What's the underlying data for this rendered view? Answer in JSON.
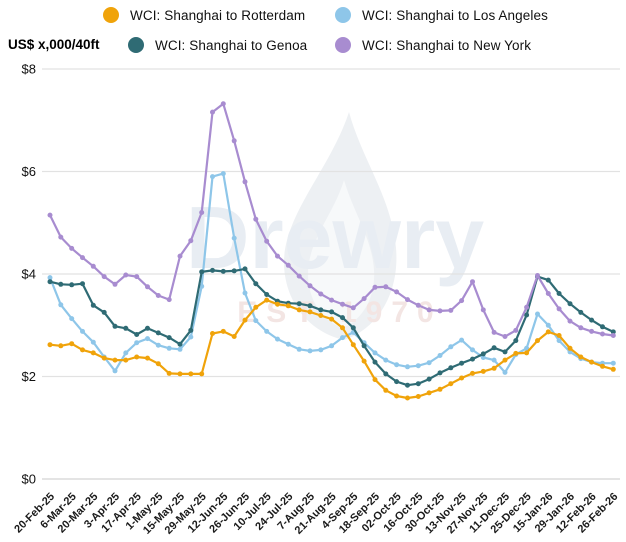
{
  "header": {
    "unit_label": "US$ x,000/40ft"
  },
  "watermark": {
    "text": "Drewry",
    "subtext": "EST 1970"
  },
  "chart_data": {
    "type": "line",
    "title": "",
    "ylabel": "US$ x,000/40ft",
    "xlabel": "",
    "ylim": [
      0,
      8
    ],
    "ytick_values": [
      0,
      2,
      4,
      6,
      8
    ],
    "ytick_labels": [
      "$0",
      "$2",
      "$4",
      "$6",
      "$8"
    ],
    "grid": "horizontal",
    "legend_position": "top",
    "marker": "circle",
    "x_label_rotation": -45,
    "label_every": 2,
    "x_tick_labels": [
      "20-Feb-25",
      "6-Mar-25",
      "20-Mar-25",
      "3-Apr-25",
      "17-Apr-25",
      "1-May-25",
      "15-May-25",
      "29-May-25",
      "12-Jun-25",
      "26-Jun-25",
      "10-Jul-25",
      "24-Jul-25",
      "7-Aug-25",
      "21-Aug-25",
      "4-Sep-25",
      "18-Sep-25",
      "02-Oct-25",
      "16-Oct-25",
      "30-Oct-25",
      "13-Nov-25",
      "27-Nov-25",
      "11-Dec-25",
      "25-Dec-25",
      "15-Jan-26",
      "29-Jan-26",
      "12-Feb-26",
      "26-Feb-26"
    ],
    "series": [
      {
        "id": "rotterdam",
        "name": "WCI: Shanghai to Rotterdam",
        "color": "#F0A30A",
        "z": 2,
        "values": [
          2.62,
          2.6,
          2.64,
          2.52,
          2.46,
          2.36,
          2.32,
          2.32,
          2.38,
          2.36,
          2.25,
          2.06,
          2.05,
          2.05,
          2.05,
          2.84,
          2.88,
          2.78,
          3.1,
          3.35,
          3.49,
          3.41,
          3.38,
          3.3,
          3.26,
          3.19,
          3.12,
          2.95,
          2.62,
          2.3,
          1.94,
          1.73,
          1.62,
          1.58,
          1.61,
          1.68,
          1.75,
          1.86,
          1.97,
          2.06,
          2.1,
          2.16,
          2.32,
          2.45,
          2.46,
          2.7,
          2.87,
          2.8,
          2.55,
          2.38,
          2.28,
          2.2,
          2.14
        ]
      },
      {
        "id": "los-angeles",
        "name": "WCI: Shanghai to Los Angeles",
        "color": "#8EC6E9",
        "z": 0,
        "values": [
          3.93,
          3.4,
          3.13,
          2.88,
          2.67,
          2.38,
          2.11,
          2.46,
          2.66,
          2.74,
          2.61,
          2.55,
          2.53,
          2.77,
          3.76,
          5.9,
          5.96,
          4.7,
          3.63,
          3.09,
          2.88,
          2.73,
          2.63,
          2.53,
          2.5,
          2.52,
          2.6,
          2.76,
          2.86,
          2.66,
          2.46,
          2.32,
          2.23,
          2.19,
          2.21,
          2.27,
          2.41,
          2.58,
          2.71,
          2.52,
          2.37,
          2.32,
          2.08,
          2.43,
          2.55,
          3.22,
          3.0,
          2.7,
          2.48,
          2.35,
          2.28,
          2.26,
          2.26
        ]
      },
      {
        "id": "genoa",
        "name": "WCI: Shanghai to Genoa",
        "color": "#2F6B74",
        "z": 1,
        "values": [
          3.85,
          3.8,
          3.79,
          3.81,
          3.39,
          3.25,
          2.98,
          2.94,
          2.82,
          2.94,
          2.85,
          2.76,
          2.63,
          2.9,
          4.04,
          4.07,
          4.05,
          4.06,
          4.1,
          3.81,
          3.6,
          3.47,
          3.43,
          3.42,
          3.38,
          3.3,
          3.26,
          3.15,
          2.95,
          2.6,
          2.28,
          2.05,
          1.9,
          1.83,
          1.86,
          1.95,
          2.07,
          2.17,
          2.26,
          2.34,
          2.44,
          2.56,
          2.48,
          2.7,
          3.2,
          3.95,
          3.88,
          3.62,
          3.42,
          3.25,
          3.1,
          2.97,
          2.87
        ]
      },
      {
        "id": "new-york",
        "name": "WCI: Shanghai to New York",
        "color": "#A88CD0",
        "z": 3,
        "values": [
          5.15,
          4.72,
          4.5,
          4.32,
          4.15,
          3.95,
          3.8,
          3.98,
          3.95,
          3.75,
          3.58,
          3.5,
          4.35,
          4.65,
          5.2,
          7.16,
          7.32,
          6.6,
          5.8,
          5.07,
          4.64,
          4.35,
          4.17,
          3.96,
          3.77,
          3.61,
          3.49,
          3.41,
          3.34,
          3.52,
          3.74,
          3.75,
          3.65,
          3.5,
          3.39,
          3.3,
          3.28,
          3.29,
          3.48,
          3.85,
          3.3,
          2.86,
          2.78,
          2.9,
          3.35,
          3.97,
          3.62,
          3.32,
          3.08,
          2.95,
          2.88,
          2.83,
          2.8
        ]
      }
    ]
  }
}
